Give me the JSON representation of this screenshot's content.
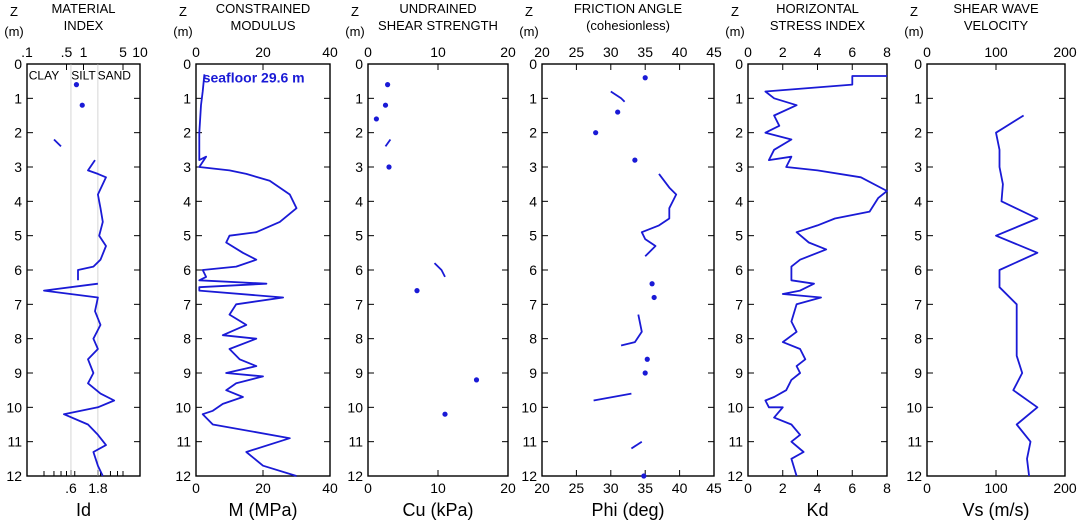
{
  "chart_data": [
    {
      "type": "line",
      "title": [
        "MATERIAL",
        "INDEX"
      ],
      "xlabel": "Id",
      "ylabel": [
        "Z",
        "(m)"
      ],
      "xscale": "log",
      "xlim": [
        0.1,
        10
      ],
      "ylim": [
        12,
        0
      ],
      "top_ticks": [
        {
          "v": 0.1,
          "t": ".1"
        },
        {
          "v": 0.5,
          "t": ".5"
        },
        {
          "v": 1,
          "t": "1"
        },
        {
          "v": 5,
          "t": "5"
        },
        {
          "v": 10,
          "t": "10"
        }
      ],
      "bottom_ticks": [
        {
          "v": 0.6,
          "t": ".6"
        },
        {
          "v": 1.8,
          "t": "1.8"
        }
      ],
      "y_ticks": [
        0,
        1,
        2,
        3,
        4,
        5,
        6,
        7,
        8,
        9,
        10,
        11,
        12
      ],
      "annotations": [
        {
          "text": "CLAY",
          "x": 0.2,
          "y": 0.3
        },
        {
          "text": "SILT",
          "x": 1.0,
          "y": 0.3
        },
        {
          "text": "SAND",
          "x": 3.5,
          "y": 0.3
        }
      ],
      "lines": [
        [
          [
            0.3,
            2.2
          ],
          [
            0.4,
            2.4
          ]
        ],
        [
          [
            1.6,
            2.8
          ],
          [
            1.2,
            3.1
          ],
          [
            1.8,
            3.2
          ],
          [
            2.5,
            3.3
          ],
          [
            1.8,
            3.8
          ],
          [
            2.0,
            4.2
          ],
          [
            2.2,
            4.6
          ],
          [
            1.9,
            5.0
          ],
          [
            2.5,
            5.3
          ],
          [
            2.0,
            5.7
          ],
          [
            1.5,
            5.9
          ],
          [
            0.8,
            6.0
          ],
          [
            0.8,
            6.3
          ]
        ],
        [
          [
            1.8,
            6.4
          ],
          [
            0.2,
            6.6
          ],
          [
            1.8,
            6.8
          ],
          [
            1.6,
            7.2
          ],
          [
            2.0,
            7.6
          ],
          [
            1.5,
            8.0
          ],
          [
            1.8,
            8.3
          ],
          [
            1.2,
            8.6
          ],
          [
            1.5,
            9.0
          ],
          [
            1.2,
            9.3
          ],
          [
            2.0,
            9.6
          ],
          [
            3.5,
            9.8
          ],
          [
            1.8,
            10.0
          ],
          [
            0.45,
            10.2
          ],
          [
            1.2,
            10.5
          ],
          [
            1.8,
            10.8
          ],
          [
            2.5,
            11.1
          ],
          [
            1.5,
            11.3
          ],
          [
            1.8,
            11.7
          ],
          [
            2.2,
            12.0
          ]
        ]
      ],
      "points": [
        [
          0.75,
          0.6
        ],
        [
          0.95,
          1.2
        ]
      ]
    },
    {
      "type": "line",
      "title": [
        "CONSTRAINED",
        "MODULUS"
      ],
      "xlabel": "M (MPa)",
      "ylabel": [
        "Z",
        "(m)"
      ],
      "xlim": [
        0,
        40
      ],
      "ylim": [
        12,
        0
      ],
      "top_ticks": [
        {
          "v": 0,
          "t": "0"
        },
        {
          "v": 20,
          "t": "20"
        },
        {
          "v": 40,
          "t": "40"
        }
      ],
      "bottom_ticks": [
        {
          "v": 0,
          "t": "0"
        },
        {
          "v": 20,
          "t": "20"
        },
        {
          "v": 40,
          "t": "40"
        }
      ],
      "y_ticks": [
        0,
        1,
        2,
        3,
        4,
        5,
        6,
        7,
        8,
        9,
        10,
        11,
        12
      ],
      "annotations": [
        {
          "text": "seafloor 29.6 m",
          "x": 2,
          "y": 0.4,
          "color": "#1a1ad6"
        }
      ],
      "lines": [
        [
          [
            2.5,
            0.3
          ],
          [
            2.0,
            0.8
          ],
          [
            1.5,
            1.2
          ],
          [
            1.0,
            2.0
          ],
          [
            1.0,
            2.8
          ],
          [
            3.0,
            2.7
          ],
          [
            1.0,
            3.0
          ],
          [
            10,
            3.1
          ],
          [
            15,
            3.2
          ],
          [
            22,
            3.4
          ],
          [
            28,
            3.8
          ],
          [
            30,
            4.2
          ],
          [
            25,
            4.6
          ],
          [
            18,
            4.9
          ],
          [
            10,
            5.0
          ],
          [
            9,
            5.2
          ],
          [
            14,
            5.5
          ],
          [
            18,
            5.7
          ],
          [
            12,
            5.9
          ],
          [
            2,
            6.0
          ],
          [
            3,
            6.2
          ],
          [
            1,
            6.3
          ],
          [
            21,
            6.4
          ],
          [
            1,
            6.5
          ],
          [
            1,
            6.6
          ],
          [
            26,
            6.8
          ],
          [
            12,
            7.0
          ],
          [
            10,
            7.3
          ],
          [
            15,
            7.6
          ],
          [
            8,
            7.9
          ],
          [
            18,
            8.0
          ],
          [
            10,
            8.3
          ],
          [
            13,
            8.6
          ],
          [
            18,
            8.8
          ],
          [
            9,
            9.0
          ],
          [
            20,
            9.1
          ],
          [
            12,
            9.3
          ],
          [
            9,
            9.5
          ],
          [
            14,
            9.7
          ],
          [
            8,
            9.9
          ],
          [
            5,
            10.1
          ],
          [
            2,
            10.2
          ],
          [
            5,
            10.5
          ],
          [
            28,
            10.9
          ],
          [
            15,
            11.3
          ],
          [
            20,
            11.7
          ],
          [
            30,
            12.0
          ]
        ]
      ],
      "points": []
    },
    {
      "type": "line",
      "title": [
        "UNDRAINED",
        "SHEAR STRENGTH"
      ],
      "xlabel": "Cu (kPa)",
      "ylabel": [
        "Z",
        "(m)"
      ],
      "xlim": [
        0,
        20
      ],
      "ylim": [
        12,
        0
      ],
      "top_ticks": [
        {
          "v": 0,
          "t": "0"
        },
        {
          "v": 10,
          "t": "10"
        },
        {
          "v": 20,
          "t": "20"
        }
      ],
      "bottom_ticks": [
        {
          "v": 0,
          "t": "0"
        },
        {
          "v": 10,
          "t": "10"
        },
        {
          "v": 20,
          "t": "20"
        }
      ],
      "y_ticks": [
        0,
        1,
        2,
        3,
        4,
        5,
        6,
        7,
        8,
        9,
        10,
        11,
        12
      ],
      "annotations": [],
      "lines": [
        [
          [
            2.5,
            2.4
          ],
          [
            3.2,
            2.2
          ]
        ],
        [
          [
            9.5,
            5.8
          ],
          [
            10.5,
            6.0
          ],
          [
            11,
            6.2
          ]
        ]
      ],
      "points": [
        [
          2.8,
          0.6
        ],
        [
          2.5,
          1.2
        ],
        [
          1.2,
          1.6
        ],
        [
          3.0,
          3.0
        ],
        [
          7.0,
          6.6
        ],
        [
          15.5,
          9.2
        ],
        [
          11.0,
          10.2
        ]
      ]
    },
    {
      "type": "line",
      "title": [
        "FRICTION ANGLE",
        "(cohesionless)"
      ],
      "xlabel": "Phi (deg)",
      "ylabel": [
        "Z",
        "(m)"
      ],
      "xlim": [
        20,
        45
      ],
      "ylim": [
        12,
        0
      ],
      "top_ticks": [
        {
          "v": 20,
          "t": "20"
        },
        {
          "v": 25,
          "t": "25"
        },
        {
          "v": 30,
          "t": "30"
        },
        {
          "v": 35,
          "t": "35"
        },
        {
          "v": 40,
          "t": "40"
        },
        {
          "v": 45,
          "t": "45"
        }
      ],
      "bottom_ticks": [
        {
          "v": 20,
          "t": "20"
        },
        {
          "v": 25,
          "t": "25"
        },
        {
          "v": 30,
          "t": "30"
        },
        {
          "v": 35,
          "t": "35"
        },
        {
          "v": 40,
          "t": "40"
        },
        {
          "v": 45,
          "t": "45"
        }
      ],
      "y_ticks": [
        0,
        1,
        2,
        3,
        4,
        5,
        6,
        7,
        8,
        9,
        10,
        11,
        12
      ],
      "annotations": [],
      "lines": [
        [
          [
            30,
            0.8
          ],
          [
            31.5,
            1.0
          ],
          [
            32,
            1.1
          ]
        ],
        [
          [
            37,
            3.2
          ],
          [
            38.5,
            3.6
          ],
          [
            39.5,
            3.8
          ],
          [
            38.5,
            4.2
          ],
          [
            38.5,
            4.5
          ],
          [
            37,
            4.7
          ],
          [
            34.5,
            4.9
          ],
          [
            35,
            5.1
          ],
          [
            36.5,
            5.3
          ],
          [
            35,
            5.6
          ]
        ],
        [
          [
            34,
            7.3
          ],
          [
            34.5,
            7.8
          ],
          [
            33.5,
            8.1
          ],
          [
            31.5,
            8.2
          ]
        ],
        [
          [
            27.5,
            9.8
          ],
          [
            33,
            9.6
          ]
        ],
        [
          [
            33,
            11.2
          ],
          [
            34.5,
            11.0
          ]
        ]
      ],
      "points": [
        [
          35,
          0.4
        ],
        [
          31,
          1.4
        ],
        [
          27.8,
          2.0
        ],
        [
          33.5,
          2.8
        ],
        [
          36,
          6.4
        ],
        [
          36.3,
          6.8
        ],
        [
          35.3,
          8.6
        ],
        [
          35,
          9.0
        ],
        [
          34.8,
          12.0
        ]
      ]
    },
    {
      "type": "line",
      "title": [
        "HORIZONTAL",
        "STRESS INDEX"
      ],
      "xlabel": "Kd",
      "ylabel": [
        "Z",
        "(m)"
      ],
      "xlim": [
        0,
        8
      ],
      "ylim": [
        12,
        0
      ],
      "top_ticks": [
        {
          "v": 0,
          "t": "0"
        },
        {
          "v": 2,
          "t": "2"
        },
        {
          "v": 4,
          "t": "4"
        },
        {
          "v": 6,
          "t": "6"
        },
        {
          "v": 8,
          "t": "8"
        }
      ],
      "bottom_ticks": [
        {
          "v": 0,
          "t": "0"
        },
        {
          "v": 2,
          "t": "2"
        },
        {
          "v": 4,
          "t": "4"
        },
        {
          "v": 6,
          "t": "6"
        },
        {
          "v": 8,
          "t": "8"
        }
      ],
      "y_ticks": [
        0,
        1,
        2,
        3,
        4,
        5,
        6,
        7,
        8,
        9,
        10,
        11,
        12
      ],
      "annotations": [],
      "lines": [
        [
          [
            8,
            0.35
          ],
          [
            6.0,
            0.35
          ],
          [
            6.0,
            0.6
          ],
          [
            1.0,
            0.8
          ],
          [
            1.5,
            1.0
          ],
          [
            2.8,
            1.2
          ],
          [
            1.5,
            1.5
          ],
          [
            1.8,
            1.8
          ],
          [
            1.0,
            2.0
          ],
          [
            2.5,
            2.2
          ],
          [
            1.5,
            2.5
          ],
          [
            1.2,
            2.8
          ],
          [
            2.5,
            2.7
          ],
          [
            2.2,
            3.0
          ],
          [
            4.0,
            3.1
          ],
          [
            6.5,
            3.3
          ],
          [
            8,
            3.7
          ],
          [
            7.5,
            3.9
          ],
          [
            7.0,
            4.3
          ],
          [
            5.0,
            4.5
          ],
          [
            4.0,
            4.7
          ],
          [
            2.8,
            4.9
          ],
          [
            3.5,
            5.2
          ],
          [
            4.5,
            5.4
          ],
          [
            3.0,
            5.7
          ],
          [
            2.5,
            5.9
          ],
          [
            2.5,
            6.3
          ],
          [
            3.8,
            6.4
          ],
          [
            3.0,
            6.6
          ],
          [
            2.0,
            6.7
          ],
          [
            4.2,
            6.8
          ],
          [
            2.8,
            7.0
          ],
          [
            2.5,
            7.5
          ],
          [
            2.8,
            7.8
          ],
          [
            2.0,
            8.1
          ],
          [
            3.0,
            8.3
          ],
          [
            3.3,
            8.6
          ],
          [
            2.8,
            8.8
          ],
          [
            3.0,
            9.0
          ],
          [
            2.5,
            9.2
          ],
          [
            2.2,
            9.5
          ],
          [
            1.5,
            9.7
          ],
          [
            1.0,
            9.8
          ],
          [
            1.2,
            10.0
          ],
          [
            2.0,
            10.0
          ],
          [
            1.5,
            10.3
          ],
          [
            2.5,
            10.5
          ],
          [
            3.0,
            10.8
          ],
          [
            2.5,
            11.0
          ],
          [
            3.2,
            11.3
          ],
          [
            2.5,
            11.5
          ],
          [
            2.8,
            12.0
          ]
        ]
      ],
      "points": []
    },
    {
      "type": "line",
      "title": [
        "SHEAR WAVE",
        "VELOCITY"
      ],
      "xlabel": "Vs (m/s)",
      "ylabel": [
        "Z",
        "(m)"
      ],
      "xlim": [
        0,
        200
      ],
      "ylim": [
        12,
        0
      ],
      "top_ticks": [
        {
          "v": 0,
          "t": "0"
        },
        {
          "v": 100,
          "t": "100"
        },
        {
          "v": 200,
          "t": "200"
        }
      ],
      "bottom_ticks": [
        {
          "v": 0,
          "t": "0"
        },
        {
          "v": 100,
          "t": "100"
        },
        {
          "v": 200,
          "t": "200"
        }
      ],
      "y_ticks": [
        0,
        1,
        2,
        3,
        4,
        5,
        6,
        7,
        8,
        9,
        10,
        11,
        12
      ],
      "annotations": [],
      "lines": [
        [
          [
            140,
            1.5
          ],
          [
            100,
            2.0
          ],
          [
            105,
            2.5
          ],
          [
            105,
            3.0
          ],
          [
            110,
            3.5
          ],
          [
            108,
            4.0
          ],
          [
            160,
            4.5
          ],
          [
            100,
            5.0
          ],
          [
            160,
            5.5
          ],
          [
            105,
            6.0
          ],
          [
            105,
            6.5
          ],
          [
            130,
            7.0
          ],
          [
            130,
            7.5
          ],
          [
            130,
            8.0
          ],
          [
            130,
            8.5
          ],
          [
            138,
            9.0
          ],
          [
            125,
            9.5
          ],
          [
            160,
            10.0
          ],
          [
            130,
            10.5
          ],
          [
            150,
            11.0
          ],
          [
            145,
            11.5
          ],
          [
            148,
            12.0
          ]
        ]
      ],
      "points": []
    }
  ]
}
